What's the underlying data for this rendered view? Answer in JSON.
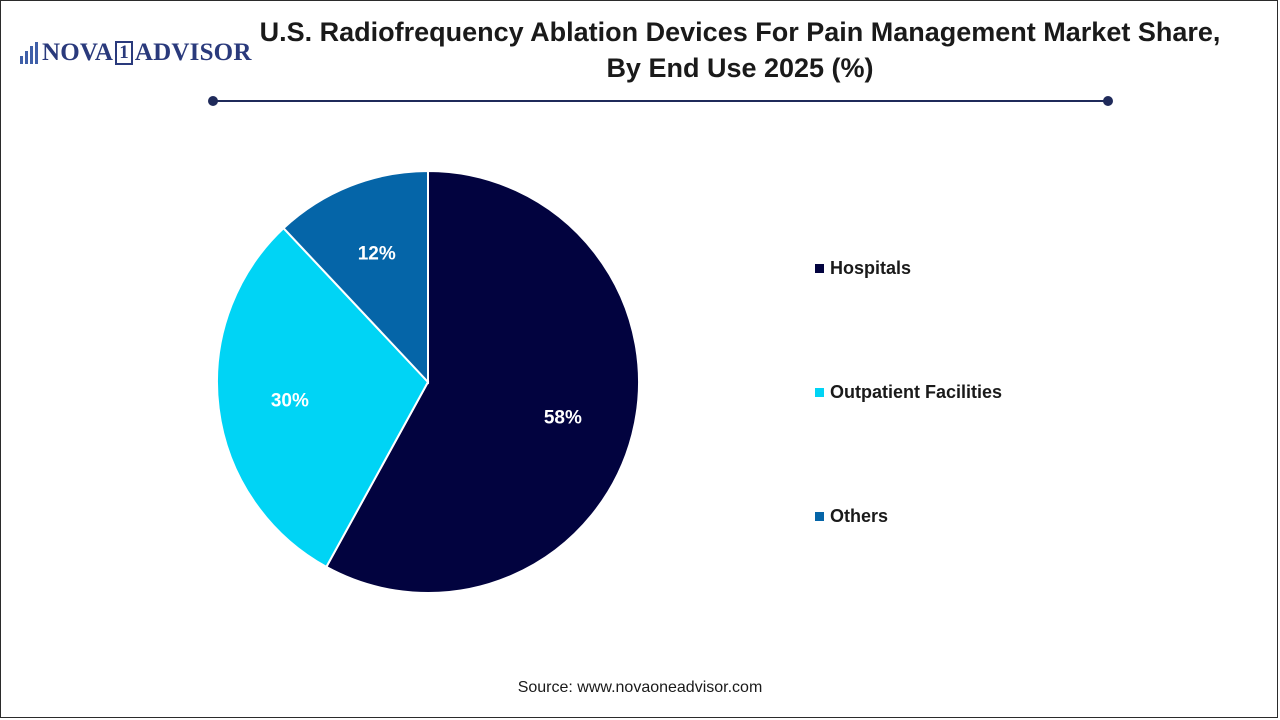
{
  "logo": {
    "part1": "NOVA",
    "part2": "1",
    "part3": "ADVISOR"
  },
  "source": "Source: www.novaoneadvisor.com",
  "colors": {
    "hospitals": "#02033f",
    "outpatient": "#00d4f5",
    "others": "#0565a8",
    "rule": "#1f2a5a"
  },
  "chart_data": {
    "type": "pie",
    "title": "U.S. Radiofrequency Ablation Devices For Pain Management Market Share, By End Use 2025 (%)",
    "categories": [
      "Hospitals",
      "Outpatient Facilities",
      "Others"
    ],
    "values": [
      58,
      30,
      12
    ],
    "labels": [
      "58%",
      "30%",
      "12%"
    ],
    "legend_position": "right",
    "start_angle": "12 o'clock",
    "direction": "clockwise"
  }
}
